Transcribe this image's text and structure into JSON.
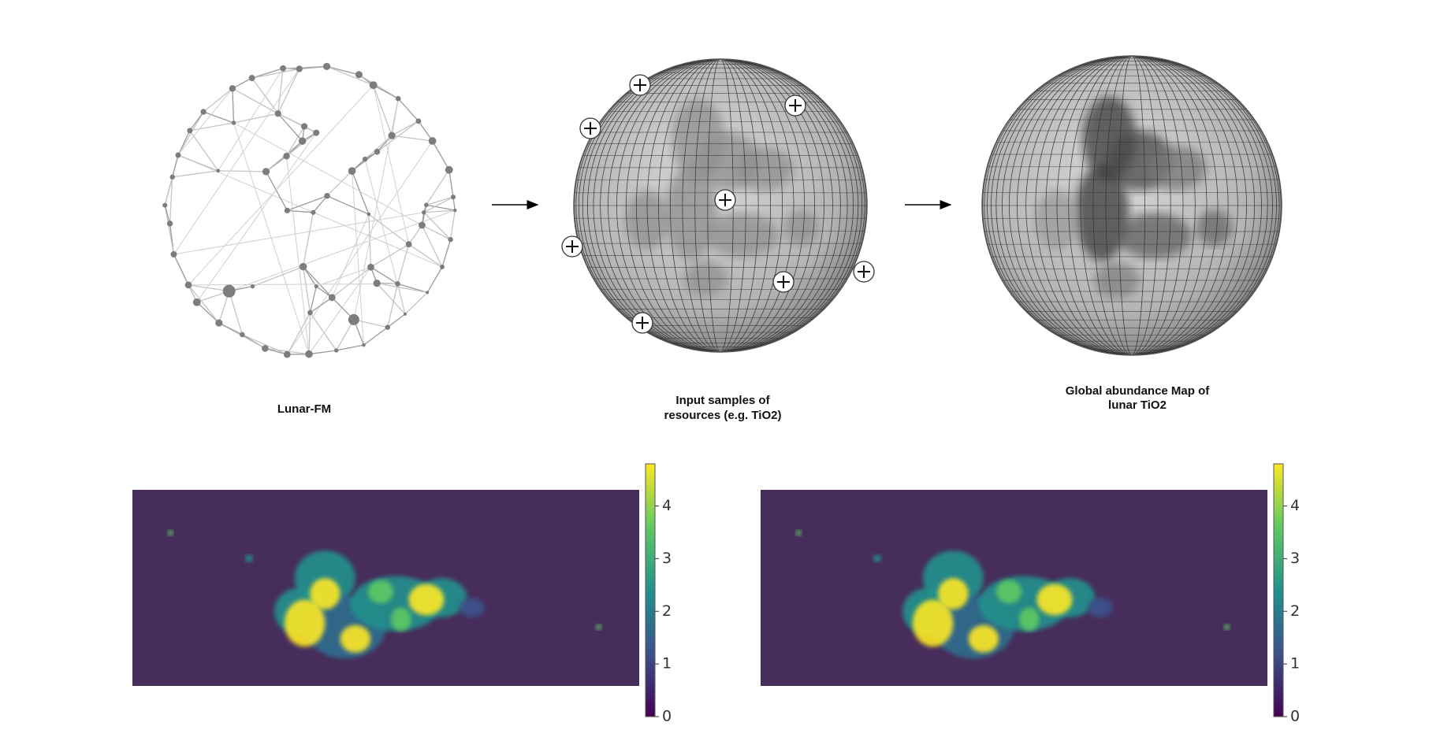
{
  "network_label": "Lunar-FM",
  "input_label": [
    "Input samples of",
    "resources (e.g. TiO2)"
  ],
  "output_label": [
    "Global abundance Map of",
    "lunar TiO2"
  ],
  "heatmaps": [
    {
      "colorbar": {
        "ylim": [
          0,
          4.8
        ],
        "yticks": [
          0,
          1,
          2,
          3,
          4
        ]
      }
    },
    {
      "colorbar": {
        "ylim": [
          0,
          4.8
        ],
        "yticks": [
          0,
          1,
          2,
          3,
          4
        ]
      }
    }
  ]
}
